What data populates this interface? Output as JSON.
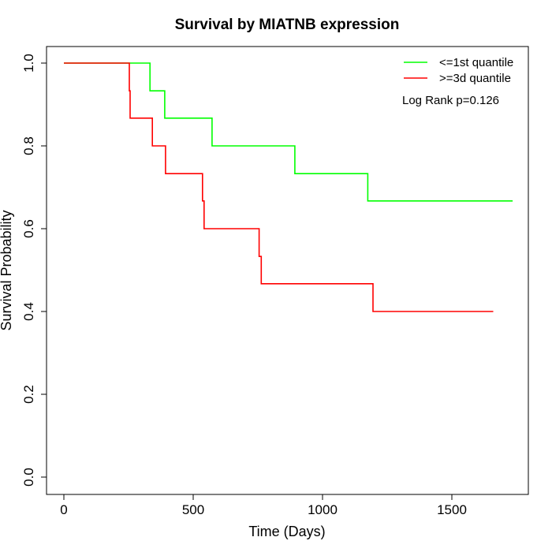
{
  "chart_data": {
    "type": "line",
    "title": "Survival by MIATNB expression",
    "xlabel": "Time (Days)",
    "ylabel": "Survival Probability",
    "xlim": [
      0,
      1750
    ],
    "ylim": [
      0,
      1.0
    ],
    "xticks": [
      0,
      500,
      1000,
      1500
    ],
    "xtick_labels": [
      "0",
      "500",
      "1000",
      "1500"
    ],
    "yticks": [
      0.0,
      0.2,
      0.4,
      0.6,
      0.8,
      1.0
    ],
    "ytick_labels": [
      "0.0",
      "0.2",
      "0.4",
      "0.6",
      "0.8",
      "1.0"
    ],
    "grid": false,
    "legend_position": "top-right",
    "annotation": "Log Rank p=0.126",
    "series": [
      {
        "name": "<=1st quantile",
        "color": "#00ff00",
        "step_points": [
          [
            0,
            1.0
          ],
          [
            333,
            1.0
          ],
          [
            333,
            0.933
          ],
          [
            390,
            0.933
          ],
          [
            390,
            0.867
          ],
          [
            573,
            0.867
          ],
          [
            573,
            0.8
          ],
          [
            893,
            0.8
          ],
          [
            893,
            0.733
          ],
          [
            1175,
            0.733
          ],
          [
            1175,
            0.667
          ],
          [
            1735,
            0.667
          ]
        ]
      },
      {
        "name": ">=3d quantile",
        "color": "#ff0000",
        "step_points": [
          [
            0,
            1.0
          ],
          [
            253,
            1.0
          ],
          [
            253,
            0.933
          ],
          [
            256,
            0.933
          ],
          [
            256,
            0.867
          ],
          [
            342,
            0.867
          ],
          [
            342,
            0.8
          ],
          [
            393,
            0.8
          ],
          [
            393,
            0.733
          ],
          [
            536,
            0.733
          ],
          [
            536,
            0.667
          ],
          [
            542,
            0.667
          ],
          [
            542,
            0.6
          ],
          [
            755,
            0.6
          ],
          [
            755,
            0.533
          ],
          [
            763,
            0.533
          ],
          [
            763,
            0.467
          ],
          [
            1195,
            0.467
          ],
          [
            1195,
            0.4
          ],
          [
            1660,
            0.4
          ]
        ]
      }
    ]
  }
}
